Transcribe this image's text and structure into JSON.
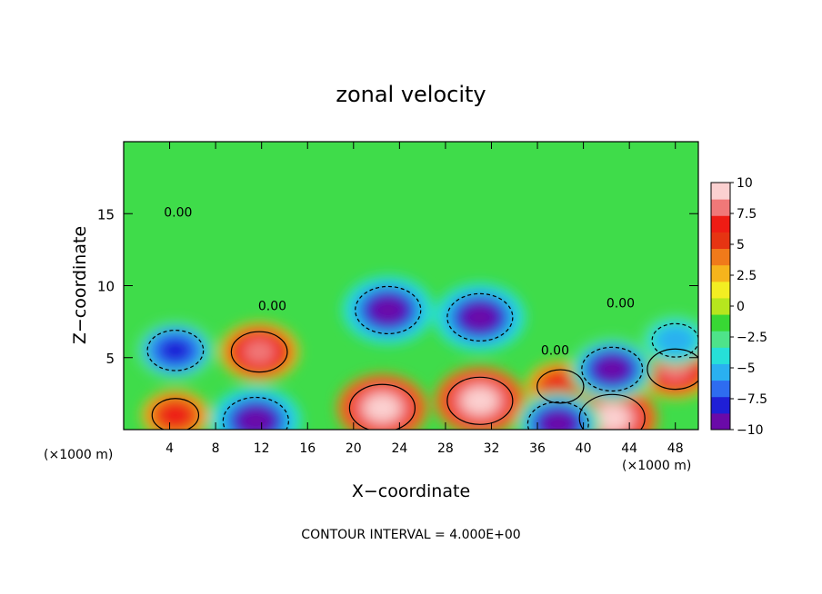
{
  "chart_data": {
    "type": "heatmap",
    "title": "zonal velocity",
    "xlabel": "X−coordinate",
    "ylabel": "Z−coordinate",
    "x_unit_left": "(×1000 m)",
    "x_unit_right": "(×1000 m)",
    "footer": "CONTOUR INTERVAL = 4.000E+00",
    "xlim": [
      0,
      50
    ],
    "ylim": [
      0,
      20
    ],
    "x_ticks": [
      4,
      8,
      12,
      16,
      20,
      24,
      28,
      32,
      36,
      40,
      44,
      48
    ],
    "x_tick_labels": [
      "4",
      "8",
      "12",
      "16",
      "20",
      "24",
      "28",
      "32",
      "36",
      "40",
      "44",
      "48"
    ],
    "y_ticks": [
      5,
      10,
      15
    ],
    "y_tick_labels": [
      "5",
      "10",
      "15"
    ],
    "colorbar": {
      "range": [
        -10,
        10
      ],
      "ticks": [
        10,
        7.5,
        5,
        2.5,
        0,
        -2.5,
        -5,
        -7.5,
        -10
      ],
      "tick_labels": [
        "10",
        "7.5",
        "5",
        "2.5",
        "0",
        "−2.5",
        "−5",
        "−7.5",
        "−10"
      ],
      "colors": [
        "#6a0aa8",
        "#1f1fd6",
        "#2e6cf0",
        "#2ab0f0",
        "#26e0d8",
        "#4ee38a",
        "#38d834",
        "#b6e61e",
        "#f3ee22",
        "#f6b41c",
        "#f07a1a",
        "#e63412",
        "#ee1c14",
        "#f07878",
        "#fbd0d0"
      ]
    },
    "contour_labels": [
      {
        "text": "0.00",
        "x": 3.5,
        "z": 14.8
      },
      {
        "text": "0.00",
        "x": 11.7,
        "z": 8.3
      },
      {
        "text": "0.00",
        "x": 36.3,
        "z": 5.2
      },
      {
        "text": "0.00",
        "x": 42.0,
        "z": 8.5
      }
    ],
    "features": [
      {
        "kind": "positive",
        "x": 11.8,
        "z": 5.4,
        "value": 8
      },
      {
        "kind": "positive",
        "x": 22.5,
        "z": 1.5,
        "value": 10
      },
      {
        "kind": "positive",
        "x": 31.0,
        "z": 2.0,
        "value": 10
      },
      {
        "kind": "positive",
        "x": 4.5,
        "z": 1.0,
        "value": 6
      },
      {
        "kind": "positive",
        "x": 38.0,
        "z": 3.0,
        "value": 6
      },
      {
        "kind": "positive",
        "x": 42.5,
        "z": 0.8,
        "value": 10
      },
      {
        "kind": "positive",
        "x": 48.0,
        "z": 4.2,
        "value": 8
      },
      {
        "kind": "negative",
        "x": 23.0,
        "z": 8.3,
        "value": -10
      },
      {
        "kind": "negative",
        "x": 31.0,
        "z": 7.8,
        "value": -10
      },
      {
        "kind": "negative",
        "x": 4.5,
        "z": 5.5,
        "value": -8
      },
      {
        "kind": "negative",
        "x": 42.5,
        "z": 4.2,
        "value": -9
      },
      {
        "kind": "negative",
        "x": 11.5,
        "z": 0.6,
        "value": -10
      },
      {
        "kind": "negative",
        "x": 37.8,
        "z": 0.4,
        "value": -9
      },
      {
        "kind": "negative",
        "x": 48.0,
        "z": 6.2,
        "value": -6
      }
    ]
  }
}
